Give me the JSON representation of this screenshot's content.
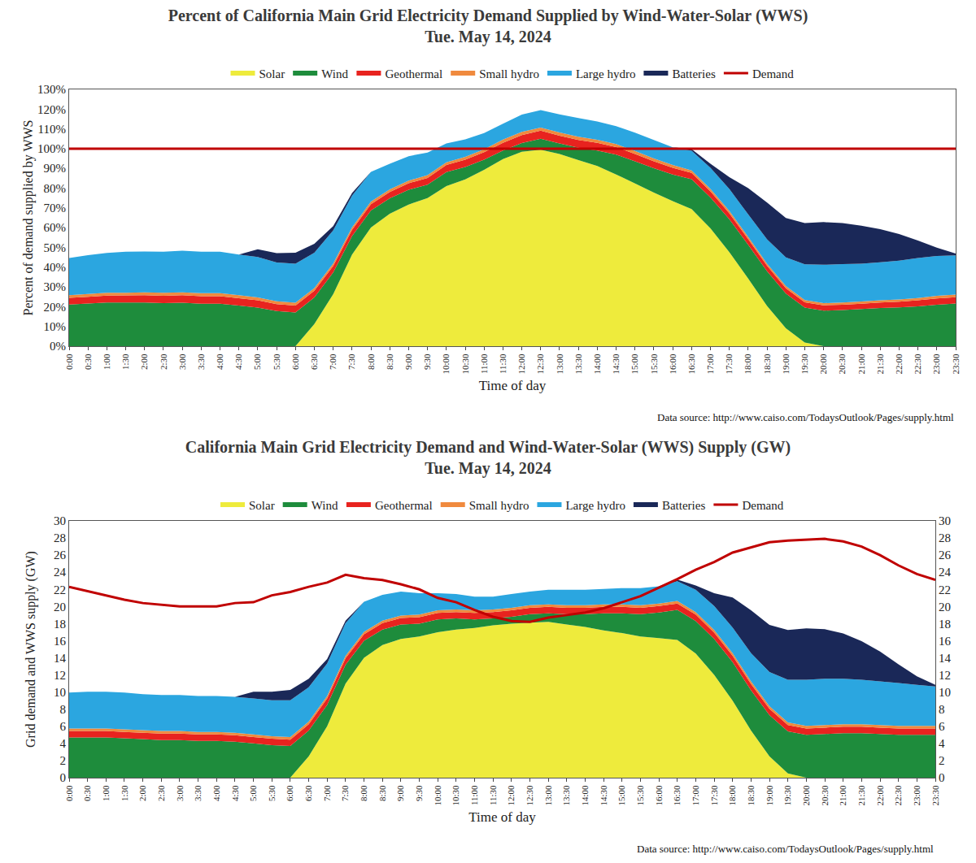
{
  "chart_data": [
    {
      "type": "area",
      "title": "Percent of California Main Grid Electricity Demand Supplied by Wind-Water-Solar (WWS)",
      "subtitle": "Tue. May 14, 2024",
      "x_label": "Time of day",
      "y_label": "Percent of demand supplied by WWS",
      "annotations": [
        "Data source: http://www.caiso.com/TodaysOutlook/Pages/supply.html"
      ],
      "stacked": true,
      "grid": false,
      "legend": "top",
      "categories": [
        "0:00",
        "0:30",
        "1:00",
        "1:30",
        "2:00",
        "2:30",
        "3:00",
        "3:30",
        "4:00",
        "4:30",
        "5:00",
        "5:30",
        "6:00",
        "6:30",
        "7:00",
        "7:30",
        "8:00",
        "8:30",
        "9:00",
        "9:30",
        "10:00",
        "10:30",
        "11:00",
        "11:30",
        "12:00",
        "12:30",
        "13:00",
        "13:30",
        "14:00",
        "14:30",
        "15:00",
        "15:30",
        "16:00",
        "16:30",
        "17:00",
        "17:30",
        "18:00",
        "18:30",
        "19:00",
        "19:30",
        "20:00",
        "20:30",
        "21:00",
        "21:30",
        "22:00",
        "22:30",
        "23:00",
        "23:30"
      ],
      "ylim": [
        0,
        130
      ],
      "yticks": [
        {
          "value": 0,
          "label": "0%"
        },
        {
          "value": 10,
          "label": "10%"
        },
        {
          "value": 20,
          "label": "20%"
        },
        {
          "value": 30,
          "label": "30%"
        },
        {
          "value": 40,
          "label": "40%"
        },
        {
          "value": 50,
          "label": "50%"
        },
        {
          "value": 60,
          "label": "60%"
        },
        {
          "value": 70,
          "label": "70%"
        },
        {
          "value": 80,
          "label": "80%"
        },
        {
          "value": 90,
          "label": "90%"
        },
        {
          "value": 100,
          "label": "100%"
        },
        {
          "value": 110,
          "label": "110%"
        },
        {
          "value": 120,
          "label": "120%"
        },
        {
          "value": 130,
          "label": "130%"
        }
      ],
      "series": [
        {
          "name": "Solar",
          "color": "#eeeb3c",
          "values": [
            0,
            0,
            0,
            0,
            0,
            0,
            0,
            0,
            0,
            0,
            0,
            0,
            0,
            11.2,
            26.3,
            46.4,
            60.1,
            67.1,
            71.7,
            75.0,
            81.0,
            84.4,
            89.3,
            94.7,
            98.4,
            99.5,
            97.3,
            94.2,
            91.2,
            86.9,
            82.4,
            77.8,
            73.4,
            69.4,
            59.7,
            47.6,
            34.2,
            20.4,
            9.1,
            1.8,
            0,
            0,
            0,
            0,
            0,
            0,
            0,
            0
          ]
        },
        {
          "name": "Wind",
          "color": "#1e8c3c",
          "values": [
            21.1,
            21.6,
            22.1,
            22.1,
            22.1,
            21.8,
            22.0,
            21.5,
            21.5,
            20.6,
            19.5,
            17.8,
            17.1,
            13.5,
            11.0,
            9.3,
            8.6,
            7.8,
            7.5,
            6.8,
            7.1,
            6.3,
            5.1,
            4.3,
            4.4,
            5.5,
            5.3,
            6.3,
            7.8,
            10.1,
            11.2,
            12.3,
            13.5,
            15.1,
            15.6,
            16.7,
            17.1,
            17.5,
            17.5,
            17.7,
            18.0,
            18.3,
            18.8,
            19.3,
            19.6,
            20.2,
            21.0,
            21.6
          ]
        },
        {
          "name": "Geothermal",
          "color": "#e8231f",
          "values": [
            3.4,
            3.4,
            3.5,
            3.6,
            3.7,
            3.7,
            3.8,
            3.8,
            3.8,
            3.7,
            3.7,
            3.5,
            3.5,
            3.4,
            3.3,
            3.2,
            3.2,
            3.2,
            3.3,
            3.4,
            3.6,
            3.7,
            3.8,
            4.0,
            4.1,
            4.1,
            4.0,
            3.9,
            3.9,
            3.8,
            3.7,
            3.5,
            3.4,
            3.2,
            3.1,
            3.0,
            2.9,
            2.8,
            2.7,
            2.7,
            2.7,
            2.7,
            2.7,
            2.8,
            2.9,
            3.0,
            3.2,
            3.2
          ]
        },
        {
          "name": "Small hydro",
          "color": "#f08a3e",
          "values": [
            1.3,
            1.4,
            1.4,
            1.4,
            1.5,
            1.5,
            1.5,
            1.5,
            1.5,
            1.5,
            1.5,
            1.4,
            1.4,
            1.3,
            1.3,
            1.3,
            1.3,
            1.3,
            1.3,
            1.4,
            1.4,
            1.5,
            1.5,
            1.6,
            1.6,
            1.6,
            1.6,
            1.6,
            1.6,
            1.5,
            1.5,
            1.4,
            1.4,
            1.3,
            1.2,
            1.2,
            1.1,
            1.1,
            1.1,
            1.1,
            1.1,
            1.1,
            1.1,
            1.1,
            1.2,
            1.2,
            1.3,
            1.3
          ]
        },
        {
          "name": "Large hydro",
          "color": "#2ba6e0",
          "values": [
            18.8,
            19.7,
            20.2,
            20.7,
            20.6,
            20.8,
            21.0,
            21.0,
            21.0,
            20.6,
            20.5,
            19.7,
            19.8,
            17.9,
            16.7,
            16.0,
            15.0,
            13.0,
            12.4,
            11.4,
            9.5,
            8.8,
            8.2,
            8.0,
            8.7,
            8.8,
            9.1,
            9.5,
            9.3,
            9.1,
            9.3,
            9.4,
            9.0,
            9.9,
            10.7,
            11.1,
            11.4,
            12.3,
            14.5,
            18.1,
            19.4,
            19.4,
            19.2,
            19.3,
            19.6,
            20.2,
            20.2,
            19.9
          ]
        },
        {
          "name": "Batteries",
          "color": "#1a2858",
          "values": [
            0,
            0,
            0,
            0,
            0,
            0,
            0,
            0,
            0,
            0,
            3.9,
            4.7,
            5.5,
            4.5,
            2.2,
            1.3,
            0,
            0,
            0,
            0,
            0,
            0,
            0,
            0,
            0,
            0,
            0,
            0,
            0,
            0,
            0,
            0,
            0,
            0.9,
            2.1,
            6.0,
            13.3,
            18.6,
            20.0,
            20.9,
            21.6,
            20.8,
            19.2,
            16.7,
            13.5,
            8.9,
            4.2,
            0.9
          ]
        },
        {
          "name": "Demand",
          "color": "#c00000",
          "type": "line",
          "values": [
            100,
            100,
            100,
            100,
            100,
            100,
            100,
            100,
            100,
            100,
            100,
            100,
            100,
            100,
            100,
            100,
            100,
            100,
            100,
            100,
            100,
            100,
            100,
            100,
            100,
            100,
            100,
            100,
            100,
            100,
            100,
            100,
            100,
            100,
            100,
            100,
            100,
            100,
            100,
            100,
            100,
            100,
            100,
            100,
            100,
            100,
            100,
            100
          ]
        }
      ]
    },
    {
      "type": "area",
      "title": "California Main Grid Electricity Demand and Wind-Water-Solar (WWS) Supply (GW)",
      "subtitle": "Tue. May 14, 2024",
      "x_label": "Time of day",
      "y_label": "Grid demand and WWS supply (GW)",
      "annotations": [
        "Data source: http://www.caiso.com/TodaysOutlook/Pages/supply.html"
      ],
      "stacked": true,
      "grid": false,
      "legend": "top",
      "categories": [
        "0:00",
        "0:30",
        "1:00",
        "1:30",
        "2:00",
        "2:30",
        "3:00",
        "3:30",
        "4:00",
        "4:30",
        "5:00",
        "5:30",
        "6:00",
        "6:30",
        "7:00",
        "7:30",
        "8:00",
        "8:30",
        "9:00",
        "9:30",
        "10:00",
        "10:30",
        "11:00",
        "11:30",
        "12:00",
        "12:30",
        "13:00",
        "13:30",
        "14:00",
        "14:30",
        "15:00",
        "15:30",
        "16:00",
        "16:30",
        "17:00",
        "17:30",
        "18:00",
        "18:30",
        "19:00",
        "19:30",
        "20:00",
        "20:30",
        "21:00",
        "21:30",
        "22:00",
        "22:30",
        "23:00",
        "23:30"
      ],
      "ylim": [
        0,
        30
      ],
      "yticks": [
        0,
        2,
        4,
        6,
        8,
        10,
        12,
        14,
        16,
        18,
        20,
        22,
        24,
        26,
        28,
        30
      ],
      "y2lim": [
        0,
        30
      ],
      "y2ticks": [
        0,
        2,
        4,
        6,
        8,
        10,
        12,
        14,
        16,
        18,
        20,
        22,
        24,
        26,
        28,
        30
      ],
      "series": [
        {
          "name": "Solar",
          "color": "#eeeb3c",
          "values": [
            0,
            0,
            0,
            0,
            0,
            0,
            0,
            0,
            0,
            0,
            0,
            0,
            0,
            2.5,
            6,
            11,
            14,
            15.5,
            16.2,
            16.5,
            17,
            17.3,
            17.5,
            17.8,
            18,
            18.1,
            18.2,
            17.9,
            17.6,
            17.2,
            16.9,
            16.5,
            16.3,
            16.1,
            14.5,
            12,
            9,
            5.5,
            2.5,
            0.5,
            0,
            0,
            0,
            0,
            0,
            0,
            0,
            0
          ]
        },
        {
          "name": "Wind",
          "color": "#1e8c3c",
          "values": [
            4.7,
            4.7,
            4.7,
            4.6,
            4.5,
            4.4,
            4.4,
            4.3,
            4.3,
            4.2,
            4.0,
            3.8,
            3.7,
            3.0,
            2.5,
            2.2,
            2.0,
            1.8,
            1.7,
            1.5,
            1.5,
            1.3,
            1.0,
            0.8,
            0.8,
            1.0,
            1.0,
            1.2,
            1.5,
            2.0,
            2.3,
            2.6,
            3.0,
            3.5,
            3.8,
            4.2,
            4.5,
            4.7,
            4.8,
            4.9,
            5.0,
            5.1,
            5.2,
            5.2,
            5.1,
            5.0,
            5.0,
            5.0
          ]
        },
        {
          "name": "Geothermal",
          "color": "#e8231f",
          "values": [
            0.75,
            0.75,
            0.75,
            0.75,
            0.75,
            0.75,
            0.75,
            0.75,
            0.75,
            0.75,
            0.75,
            0.75,
            0.75,
            0.75,
            0.75,
            0.75,
            0.75,
            0.75,
            0.75,
            0.75,
            0.75,
            0.75,
            0.75,
            0.75,
            0.75,
            0.75,
            0.75,
            0.75,
            0.75,
            0.75,
            0.75,
            0.75,
            0.75,
            0.75,
            0.75,
            0.75,
            0.75,
            0.75,
            0.75,
            0.75,
            0.75,
            0.75,
            0.75,
            0.75,
            0.75,
            0.75,
            0.75,
            0.75
          ]
        },
        {
          "name": "Small hydro",
          "color": "#f08a3e",
          "values": [
            0.3,
            0.3,
            0.3,
            0.3,
            0.3,
            0.3,
            0.3,
            0.3,
            0.3,
            0.3,
            0.3,
            0.3,
            0.3,
            0.3,
            0.3,
            0.3,
            0.3,
            0.3,
            0.3,
            0.3,
            0.3,
            0.3,
            0.3,
            0.3,
            0.3,
            0.3,
            0.3,
            0.3,
            0.3,
            0.3,
            0.3,
            0.3,
            0.3,
            0.3,
            0.3,
            0.3,
            0.3,
            0.3,
            0.3,
            0.3,
            0.3,
            0.3,
            0.3,
            0.3,
            0.3,
            0.3,
            0.3,
            0.3
          ]
        },
        {
          "name": "Large hydro",
          "color": "#2ba6e0",
          "values": [
            4.2,
            4.3,
            4.3,
            4.3,
            4.2,
            4.2,
            4.2,
            4.2,
            4.2,
            4.2,
            4.2,
            4.2,
            4.3,
            4.0,
            3.8,
            3.8,
            3.5,
            3.0,
            2.8,
            2.5,
            2.0,
            1.8,
            1.6,
            1.5,
            1.6,
            1.6,
            1.7,
            1.8,
            1.8,
            1.8,
            1.9,
            2.0,
            2.0,
            2.3,
            2.6,
            2.8,
            3.0,
            3.3,
            4.0,
            5.0,
            5.4,
            5.4,
            5.3,
            5.2,
            5.1,
            5.0,
            4.8,
            4.6
          ]
        },
        {
          "name": "Batteries",
          "color": "#1a2858",
          "values": [
            0,
            0,
            0,
            0,
            0,
            0,
            0,
            0,
            0,
            0,
            0.8,
            1.0,
            1.2,
            1.0,
            0.5,
            0.3,
            0,
            0,
            0,
            0,
            0,
            0,
            0,
            0,
            0,
            0,
            0,
            0,
            0,
            0,
            0,
            0,
            0,
            0.2,
            0.5,
            1.5,
            3.5,
            5.0,
            5.5,
            5.8,
            6.0,
            5.8,
            5.3,
            4.5,
            3.5,
            2.2,
            1.0,
            0.2
          ]
        },
        {
          "name": "Demand",
          "color": "#c00000",
          "type": "line",
          "axis": "y2",
          "values": [
            22.3,
            21.8,
            21.3,
            20.8,
            20.4,
            20.2,
            20.0,
            20.0,
            20.0,
            20.4,
            20.5,
            21.3,
            21.7,
            22.3,
            22.8,
            23.7,
            23.3,
            23.1,
            22.6,
            22.0,
            21.0,
            20.5,
            19.6,
            18.8,
            18.3,
            18.2,
            18.7,
            19.0,
            19.3,
            19.8,
            20.5,
            21.2,
            22.2,
            23.2,
            24.3,
            25.2,
            26.3,
            26.9,
            27.5,
            27.7,
            27.8,
            27.9,
            27.6,
            27.0,
            26.0,
            24.8,
            23.8,
            23.1
          ]
        }
      ]
    }
  ]
}
